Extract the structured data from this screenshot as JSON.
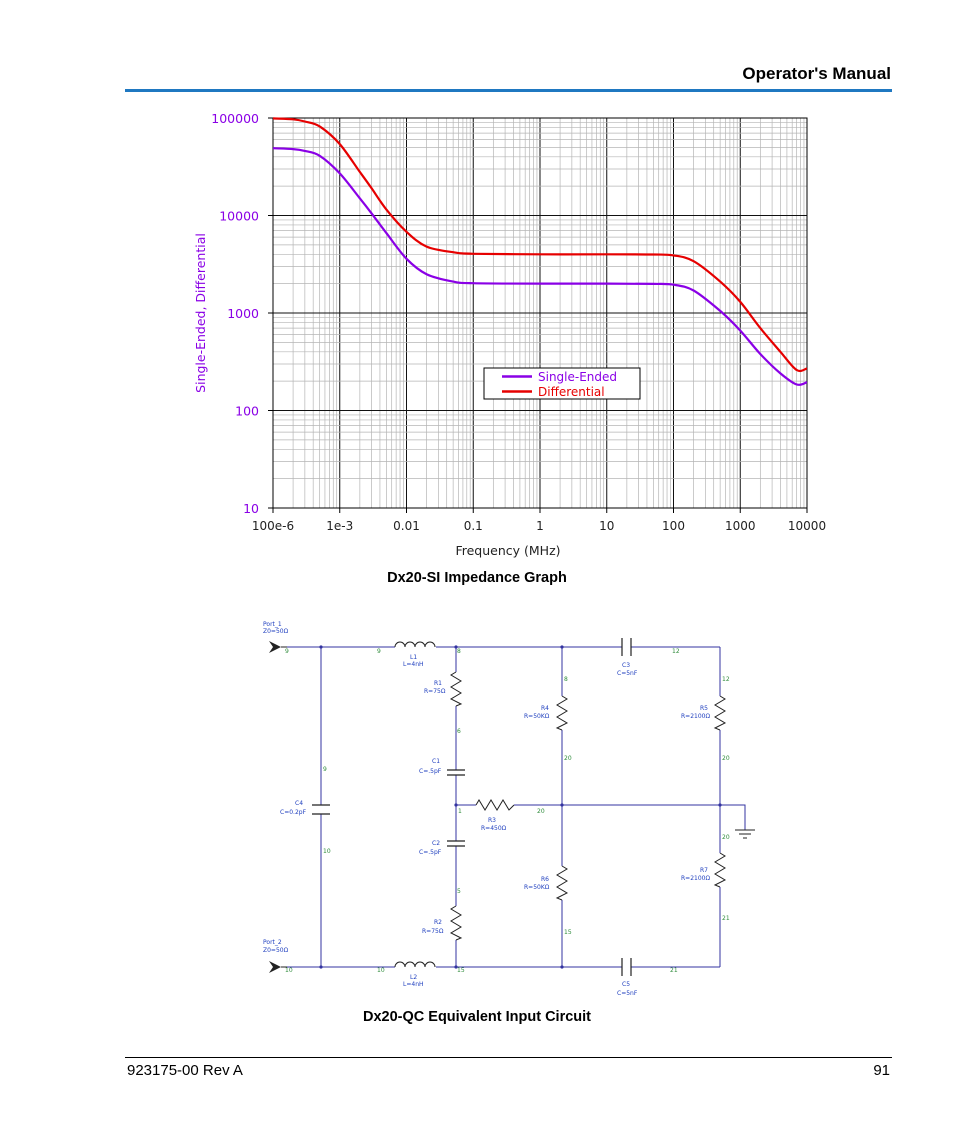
{
  "header": {
    "title": "Operator's Manual",
    "accent_color": "#1f78c1"
  },
  "chart_data": {
    "type": "line",
    "title": "",
    "xlabel": "Frequency (MHz)",
    "ylabel": "Single-Ended, Differential",
    "x_scale": "log",
    "y_scale": "log",
    "xlim": [
      0.0001,
      10000
    ],
    "ylim": [
      10,
      100000
    ],
    "x_ticks": [
      0.0001,
      0.001,
      0.01,
      0.1,
      1,
      10,
      100,
      1000,
      10000
    ],
    "x_tick_labels": [
      "100e-6",
      "1e-3",
      "0.01",
      "0.1",
      "1",
      "10",
      "100",
      "1000",
      "10000"
    ],
    "y_ticks": [
      10,
      100,
      1000,
      10000,
      100000
    ],
    "y_tick_labels": [
      "10",
      "100",
      "1000",
      "10000",
      "100000"
    ],
    "grid": true,
    "legend_position": "center-right",
    "series": [
      {
        "name": "Single-Ended",
        "color": "#8a00e6",
        "x": [
          0.0001,
          0.0002,
          0.0003,
          0.0005,
          0.001,
          0.002,
          0.003,
          0.005,
          0.01,
          0.02,
          0.05,
          0.1,
          1,
          10,
          50,
          100,
          200,
          500,
          1000,
          2000,
          4000,
          7000,
          10000
        ],
        "values": [
          49000,
          48000,
          46000,
          41000,
          27000,
          15000,
          10500,
          6600,
          3600,
          2500,
          2100,
          2020,
          2000,
          2000,
          1990,
          1950,
          1700,
          1050,
          660,
          380,
          240,
          185,
          195
        ]
      },
      {
        "name": "Differential",
        "color": "#e60000",
        "x": [
          0.0001,
          0.0002,
          0.0003,
          0.0005,
          0.001,
          0.002,
          0.003,
          0.005,
          0.01,
          0.02,
          0.05,
          0.1,
          1,
          10,
          50,
          100,
          200,
          500,
          1000,
          2000,
          4000,
          7000,
          10000
        ],
        "values": [
          99000,
          97000,
          92000,
          82000,
          54000,
          28000,
          19000,
          11500,
          6800,
          4800,
          4200,
          4050,
          4000,
          4000,
          3980,
          3900,
          3400,
          2100,
          1300,
          700,
          400,
          260,
          270
        ]
      }
    ]
  },
  "chart_caption": "Dx20-SI Impedance Graph",
  "circuit": {
    "port1": {
      "name": "Port_1",
      "z": "Z0=50Ω",
      "node": "9"
    },
    "port2": {
      "name": "Port_2",
      "z": "Z0=50Ω",
      "node": "10"
    },
    "components": {
      "L1": {
        "name": "L1",
        "value": "L=4nH"
      },
      "L2": {
        "name": "L2",
        "value": "L=4nH"
      },
      "R1": {
        "name": "R1",
        "value": "R=75Ω"
      },
      "R2": {
        "name": "R2",
        "value": "R=75Ω"
      },
      "R3": {
        "name": "R3",
        "value": "R=450Ω"
      },
      "R4": {
        "name": "R4",
        "value": "R=50KΩ"
      },
      "R5": {
        "name": "R5",
        "value": "R=2100Ω"
      },
      "R6": {
        "name": "R6",
        "value": "R=50KΩ"
      },
      "R7": {
        "name": "R7",
        "value": "R=2100Ω"
      },
      "C1": {
        "name": "C1",
        "value": "C=.5pF"
      },
      "C2": {
        "name": "C2",
        "value": "C=.5pF"
      },
      "C3": {
        "name": "C3",
        "value": "C=5nF"
      },
      "C4": {
        "name": "C4",
        "value": "C=0.2pF"
      },
      "C5": {
        "name": "C5",
        "value": "C=5nF"
      }
    },
    "nodes": {
      "n9a": "9",
      "n9b": "9",
      "n8a": "8",
      "n8b": "8",
      "n12a": "12",
      "n12b": "12",
      "n6": "6",
      "n9c": "9",
      "n20a": "20",
      "n20b": "20",
      "n1": "1",
      "n20c": "20",
      "n20d": "20",
      "n10a": "10",
      "n5": "5",
      "n15a": "15",
      "n21a": "21",
      "n10b": "10",
      "n10c": "10",
      "n15b": "15",
      "n21b": "21"
    }
  },
  "circuit_caption": "Dx20-QC Equivalent Input Circuit",
  "footer": {
    "doc_id": "923175-00 Rev A",
    "page_number": "91"
  }
}
